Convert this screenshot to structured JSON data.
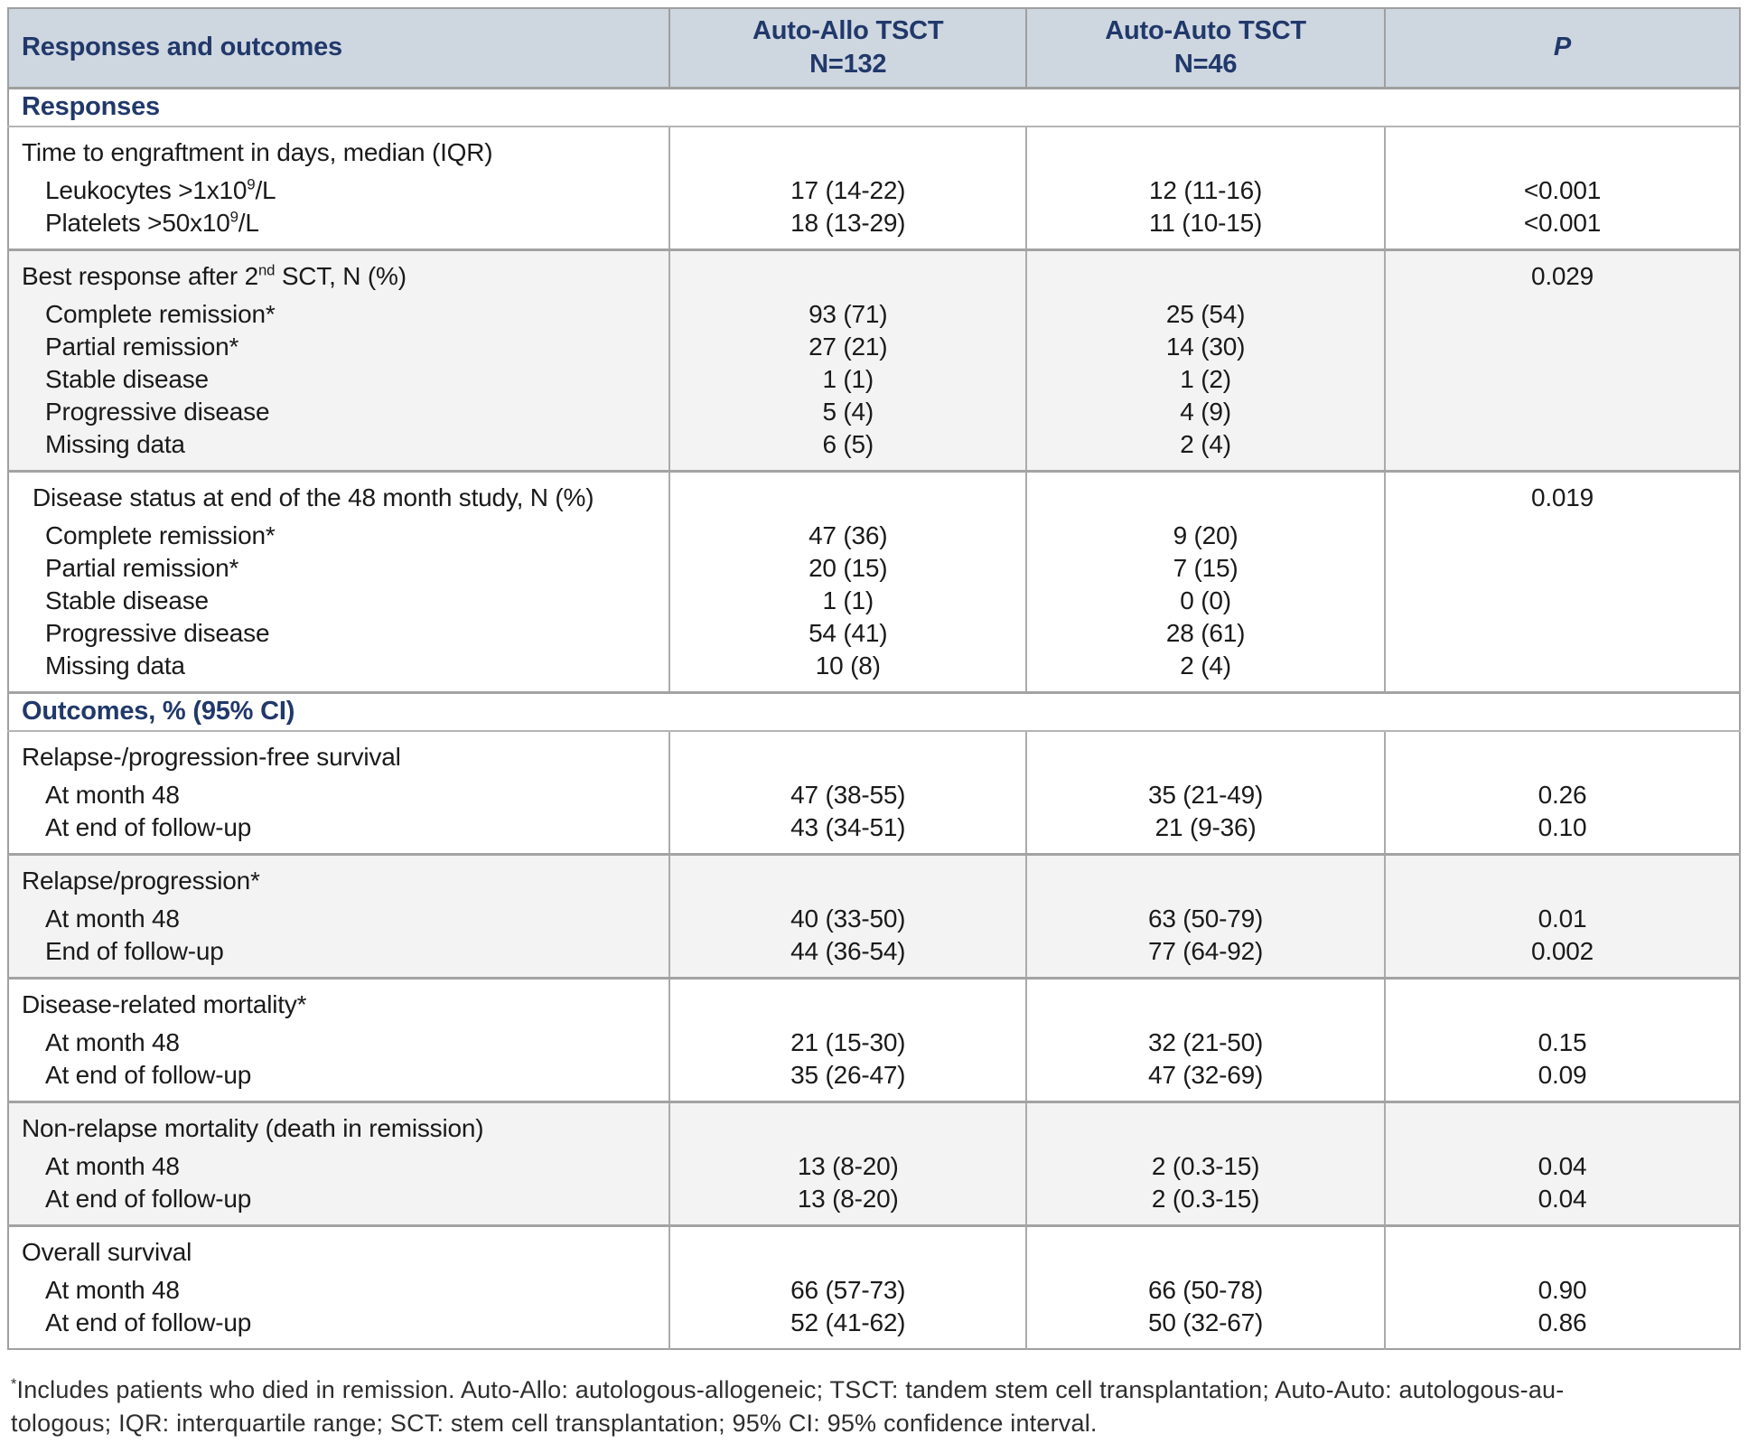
{
  "table": {
    "header": {
      "responses_outcomes": "Responses and outcomes",
      "col2_line1": "Auto-Allo TSCT",
      "col2_line2": "N=132",
      "col3_line1": "Auto-Auto TSCT",
      "col3_line2": "N=46",
      "p": "P"
    },
    "rows": [
      {
        "type": "section",
        "label": "Responses"
      },
      {
        "type": "group",
        "shaded": false,
        "cols": [
          [
            "Time to engraftment in days, median (IQR)",
            "Leukocytes >1x10^{9}/L",
            "Platelets >50x10^{9}/L"
          ],
          [
            "",
            "17 (14-22)",
            "18 (13-29)"
          ],
          [
            "",
            "12 (11-16)",
            "11 (10-15)"
          ],
          [
            "",
            "<0.001",
            "<0.001"
          ]
        ]
      },
      {
        "type": "group",
        "shaded": true,
        "cols": [
          [
            "Best response after 2^{nd} SCT, N (%)",
            "Complete remission*",
            "Partial remission*",
            "Stable disease",
            "Progressive disease",
            "Missing data"
          ],
          [
            "",
            "93 (71)",
            "27 (21)",
            "1 (1)",
            "5 (4)",
            "6 (5)"
          ],
          [
            "",
            "25 (54)",
            "14 (30)",
            "1 (2)",
            "4 (9)",
            "2 (4)"
          ],
          [
            "0.029",
            "",
            "",
            "",
            "",
            ""
          ]
        ]
      },
      {
        "type": "group",
        "shaded": false,
        "title_indent": true,
        "cols": [
          [
            "Disease status at end of the 48 month study, N (%)",
            "Complete remission*",
            "Partial remission*",
            "Stable disease",
            "Progressive disease",
            "Missing data"
          ],
          [
            "",
            "47 (36)",
            "20 (15)",
            "1 (1)",
            "54 (41)",
            "10 (8)"
          ],
          [
            "",
            "9 (20)",
            "7 (15)",
            "0 (0)",
            "28 (61)",
            "2 (4)"
          ],
          [
            "0.019",
            "",
            "",
            "",
            "",
            ""
          ]
        ]
      },
      {
        "type": "section",
        "label": "Outcomes, % (95% CI)"
      },
      {
        "type": "group",
        "shaded": false,
        "cols": [
          [
            "Relapse-/progression-free survival",
            "At month 48",
            "At end of follow-up"
          ],
          [
            "",
            "47 (38-55)",
            "43 (34-51)"
          ],
          [
            "",
            "35 (21-49)",
            "21 (9-36)"
          ],
          [
            "",
            "0.26",
            "0.10"
          ]
        ]
      },
      {
        "type": "group",
        "shaded": true,
        "cols": [
          [
            "Relapse/progression*",
            "At month 48",
            "End of follow-up"
          ],
          [
            "",
            "40 (33-50)",
            "44 (36-54)"
          ],
          [
            "",
            "63 (50-79)",
            "77 (64-92)"
          ],
          [
            "",
            "0.01",
            "0.002"
          ]
        ]
      },
      {
        "type": "group",
        "shaded": false,
        "cols": [
          [
            "Disease-related mortality*",
            "At month 48",
            "At end of follow-up"
          ],
          [
            "",
            "21 (15-30)",
            "35 (26-47)"
          ],
          [
            "",
            "32 (21-50)",
            "47 (32-69)"
          ],
          [
            "",
            "0.15",
            "0.09"
          ]
        ]
      },
      {
        "type": "group",
        "shaded": true,
        "cols": [
          [
            "Non-relapse mortality (death in remission)",
            "At month 48",
            "At end of follow-up"
          ],
          [
            "",
            "13 (8-20)",
            "13 (8-20)"
          ],
          [
            "",
            "2 (0.3-15)",
            "2 (0.3-15)"
          ],
          [
            "",
            "0.04",
            "0.04"
          ]
        ]
      },
      {
        "type": "group",
        "shaded": false,
        "cols": [
          [
            "Overall survival",
            "At month 48",
            "At end of follow-up"
          ],
          [
            "",
            "66 (57-73)",
            "52 (41-62)"
          ],
          [
            "",
            "66 (50-78)",
            "50 (32-67)"
          ],
          [
            "",
            "0.90",
            "0.86"
          ]
        ]
      }
    ]
  },
  "footnote": {
    "lines": [
      "^{*}Includes patients who died in remission. Auto-Allo: autologous-allogeneic; TSCT: tandem stem cell transplantation; Auto-Auto: autologous-au-",
      "tologous; IQR: interquartile range; SCT: stem cell transplantation; 95% CI: 95% confidence interval."
    ]
  },
  "colors": {
    "header_background": "#ced6e0",
    "heading_text": "#21386a",
    "body_text": "#1a1a1a",
    "shaded_row": "#f3f3f3",
    "border": "#9f9f9f"
  }
}
